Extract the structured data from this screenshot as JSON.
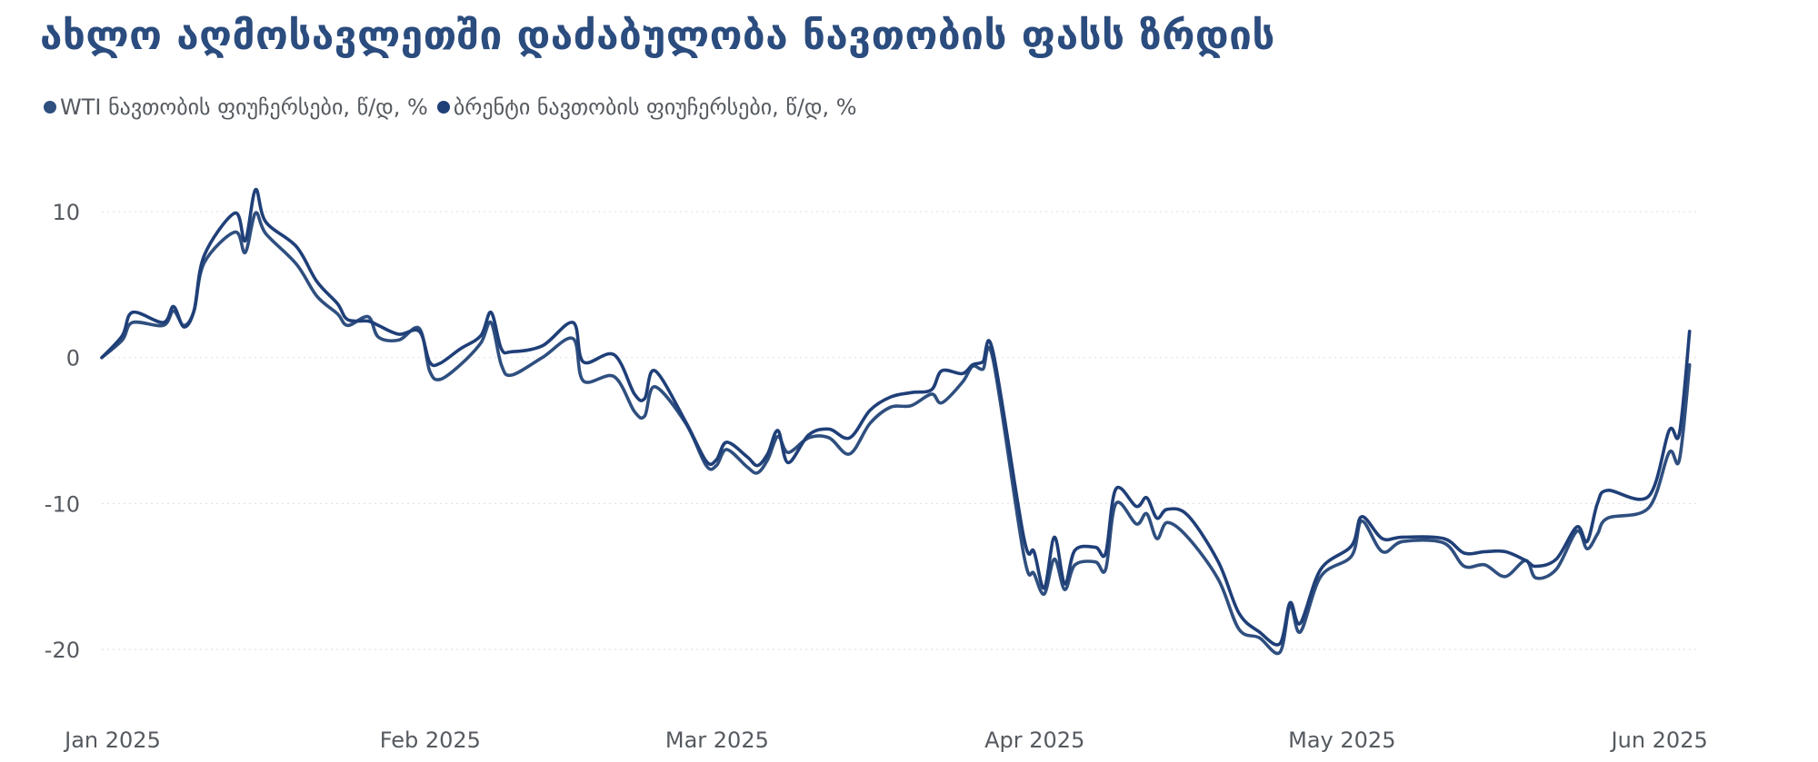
{
  "title": "ახლო აღმოსავლეთში დაძაბულობა ნავთობის ფასს ზრდის",
  "colors": {
    "title": "#2b4c7e",
    "wti": "#2f4f7f",
    "brent": "#1f3f78",
    "grid": "#e3e3e3",
    "text": "#555a60"
  },
  "chart_data": {
    "type": "line",
    "title": "ახლო აღმოსავლეთში დაძაბულობა ნავთობის ფასს ზრდის",
    "xlabel": "",
    "ylabel": "",
    "ylim": [
      -23,
      12
    ],
    "y_ticks": [
      10,
      0,
      -10,
      -20
    ],
    "x_ticks": [
      {
        "date": "2025-01-01",
        "label": "Jan 2025"
      },
      {
        "date": "2025-02-01",
        "label": "Feb 2025"
      },
      {
        "date": "2025-03-01",
        "label": "Mar 2025"
      },
      {
        "date": "2025-04-01",
        "label": "Apr 2025"
      },
      {
        "date": "2025-05-01",
        "label": "May 2025"
      },
      {
        "date": "2025-06-01",
        "label": "Jun 2025"
      }
    ],
    "grid": "horizontal dotted",
    "legend_position": "top-left",
    "series": [
      {
        "name": "WTI ნავთობის ფიუჩერსები, წ/დ, %",
        "points": [
          [
            "2025-01-01",
            0
          ],
          [
            "2025-01-03",
            1.2
          ],
          [
            "2025-01-04",
            2.4
          ],
          [
            "2025-01-07",
            2.2
          ],
          [
            "2025-01-08",
            3.2
          ],
          [
            "2025-01-09",
            2.2
          ],
          [
            "2025-01-10",
            3.2
          ],
          [
            "2025-01-11",
            6.5
          ],
          [
            "2025-01-14",
            8.6
          ],
          [
            "2025-01-15",
            7.2
          ],
          [
            "2025-01-16",
            9.9
          ],
          [
            "2025-01-17",
            8.5
          ],
          [
            "2025-01-20",
            6.4
          ],
          [
            "2025-01-22",
            4.2
          ],
          [
            "2025-01-24",
            3.0
          ],
          [
            "2025-01-25",
            2.2
          ],
          [
            "2025-01-27",
            2.8
          ],
          [
            "2025-01-28",
            1.4
          ],
          [
            "2025-01-30",
            1.2
          ],
          [
            "2025-02-01",
            2.0
          ],
          [
            "2025-02-02",
            -0.9
          ],
          [
            "2025-02-03",
            -1.5
          ],
          [
            "2025-02-05",
            -0.5
          ],
          [
            "2025-02-07",
            1.0
          ],
          [
            "2025-02-08",
            2.4
          ],
          [
            "2025-02-09",
            -0.5
          ],
          [
            "2025-02-10",
            -1.2
          ],
          [
            "2025-02-13",
            0
          ],
          [
            "2025-02-16",
            1.3
          ],
          [
            "2025-02-17",
            -1.6
          ],
          [
            "2025-02-20",
            -1.3
          ],
          [
            "2025-02-22",
            -3.7
          ],
          [
            "2025-02-23",
            -4.0
          ],
          [
            "2025-02-24",
            -2.0
          ],
          [
            "2025-02-27",
            -4.5
          ],
          [
            "2025-03-01",
            -7.4
          ],
          [
            "2025-03-02",
            -7.4
          ],
          [
            "2025-03-03",
            -6.3
          ],
          [
            "2025-03-05",
            -7.5
          ],
          [
            "2025-03-06",
            -7.9
          ],
          [
            "2025-03-07",
            -7.0
          ],
          [
            "2025-03-08",
            -5.4
          ],
          [
            "2025-03-09",
            -6.5
          ],
          [
            "2025-03-11",
            -5.5
          ],
          [
            "2025-03-13",
            -5.5
          ],
          [
            "2025-03-15",
            -6.6
          ],
          [
            "2025-03-17",
            -4.5
          ],
          [
            "2025-03-19",
            -3.4
          ],
          [
            "2025-03-21",
            -3.3
          ],
          [
            "2025-03-23",
            -2.5
          ],
          [
            "2025-03-24",
            -3.1
          ],
          [
            "2025-03-26",
            -1.7
          ],
          [
            "2025-03-27",
            -0.6
          ],
          [
            "2025-03-28",
            -0.8
          ],
          [
            "2025-03-29",
            -0.1
          ],
          [
            "2025-04-01",
            -13.5
          ],
          [
            "2025-04-02",
            -14.8
          ],
          [
            "2025-04-03",
            -16.2
          ],
          [
            "2025-04-04",
            -13.8
          ],
          [
            "2025-04-05",
            -15.9
          ],
          [
            "2025-04-06",
            -14.2
          ],
          [
            "2025-04-08",
            -14.0
          ],
          [
            "2025-04-09",
            -14.5
          ],
          [
            "2025-04-10",
            -10.0
          ],
          [
            "2025-04-12",
            -11.4
          ],
          [
            "2025-04-13",
            -10.7
          ],
          [
            "2025-04-14",
            -12.4
          ],
          [
            "2025-04-15",
            -11.3
          ],
          [
            "2025-04-17",
            -12.3
          ],
          [
            "2025-04-20",
            -15.2
          ],
          [
            "2025-04-22",
            -18.6
          ],
          [
            "2025-04-24",
            -19.2
          ],
          [
            "2025-04-26",
            -20.2
          ],
          [
            "2025-04-27",
            -17.0
          ],
          [
            "2025-04-28",
            -18.8
          ],
          [
            "2025-04-30",
            -15.0
          ],
          [
            "2025-05-03",
            -13.6
          ],
          [
            "2025-05-04",
            -11.2
          ],
          [
            "2025-05-06",
            -13.3
          ],
          [
            "2025-05-08",
            -12.6
          ],
          [
            "2025-05-12",
            -12.7
          ],
          [
            "2025-05-14",
            -14.3
          ],
          [
            "2025-05-16",
            -14.2
          ],
          [
            "2025-05-18",
            -15.0
          ],
          [
            "2025-05-20",
            -13.9
          ],
          [
            "2025-05-21",
            -15.1
          ],
          [
            "2025-05-23",
            -14.5
          ],
          [
            "2025-05-25",
            -11.9
          ],
          [
            "2025-05-26",
            -13.1
          ],
          [
            "2025-05-27",
            -12.1
          ],
          [
            "2025-05-28",
            -11.0
          ],
          [
            "2025-06-01",
            -10.3
          ],
          [
            "2025-06-03",
            -6.5
          ],
          [
            "2025-06-04",
            -7.0
          ],
          [
            "2025-06-05",
            -0.5
          ]
        ]
      },
      {
        "name": "ბრენტი ნავთობის ფიუჩერსები, წ/დ, %",
        "points": [
          [
            "2025-01-01",
            0
          ],
          [
            "2025-01-03",
            1.5
          ],
          [
            "2025-01-04",
            3.1
          ],
          [
            "2025-01-07",
            2.4
          ],
          [
            "2025-01-08",
            3.5
          ],
          [
            "2025-01-09",
            2.1
          ],
          [
            "2025-01-10",
            3.2
          ],
          [
            "2025-01-11",
            7.0
          ],
          [
            "2025-01-14",
            9.9
          ],
          [
            "2025-01-15",
            8.0
          ],
          [
            "2025-01-16",
            11.5
          ],
          [
            "2025-01-17",
            9.3
          ],
          [
            "2025-01-20",
            7.6
          ],
          [
            "2025-01-22",
            5.2
          ],
          [
            "2025-01-24",
            3.7
          ],
          [
            "2025-01-25",
            2.6
          ],
          [
            "2025-01-27",
            2.5
          ],
          [
            "2025-01-28",
            2.2
          ],
          [
            "2025-01-30",
            1.6
          ],
          [
            "2025-02-01",
            1.8
          ],
          [
            "2025-02-02",
            -0.3
          ],
          [
            "2025-02-03",
            -0.4
          ],
          [
            "2025-02-05",
            0.6
          ],
          [
            "2025-02-07",
            1.5
          ],
          [
            "2025-02-08",
            3.1
          ],
          [
            "2025-02-09",
            0.6
          ],
          [
            "2025-02-10",
            0.4
          ],
          [
            "2025-02-13",
            0.8
          ],
          [
            "2025-02-16",
            2.4
          ],
          [
            "2025-02-17",
            -0.3
          ],
          [
            "2025-02-20",
            0.2
          ],
          [
            "2025-02-22",
            -2.5
          ],
          [
            "2025-02-23",
            -2.8
          ],
          [
            "2025-02-24",
            -0.9
          ],
          [
            "2025-02-27",
            -4.4
          ],
          [
            "2025-03-01",
            -7.1
          ],
          [
            "2025-03-02",
            -7.0
          ],
          [
            "2025-03-03",
            -5.8
          ],
          [
            "2025-03-05",
            -6.8
          ],
          [
            "2025-03-06",
            -7.4
          ],
          [
            "2025-03-07",
            -6.6
          ],
          [
            "2025-03-08",
            -5.0
          ],
          [
            "2025-03-09",
            -7.2
          ],
          [
            "2025-03-11",
            -5.3
          ],
          [
            "2025-03-13",
            -4.9
          ],
          [
            "2025-03-15",
            -5.5
          ],
          [
            "2025-03-17",
            -3.6
          ],
          [
            "2025-03-19",
            -2.7
          ],
          [
            "2025-03-21",
            -2.4
          ],
          [
            "2025-03-23",
            -2.2
          ],
          [
            "2025-03-24",
            -0.9
          ],
          [
            "2025-03-26",
            -1.1
          ],
          [
            "2025-03-27",
            -0.5
          ],
          [
            "2025-03-28",
            -0.3
          ],
          [
            "2025-03-29",
            0.4
          ],
          [
            "2025-04-01",
            -12.3
          ],
          [
            "2025-04-02",
            -13.3
          ],
          [
            "2025-04-03",
            -15.8
          ],
          [
            "2025-04-04",
            -12.3
          ],
          [
            "2025-04-05",
            -15.5
          ],
          [
            "2025-04-06",
            -13.2
          ],
          [
            "2025-04-08",
            -13.0
          ],
          [
            "2025-04-09",
            -13.4
          ],
          [
            "2025-04-10",
            -9.0
          ],
          [
            "2025-04-12",
            -10.2
          ],
          [
            "2025-04-13",
            -9.6
          ],
          [
            "2025-04-14",
            -11.0
          ],
          [
            "2025-04-15",
            -10.4
          ],
          [
            "2025-04-17",
            -10.8
          ],
          [
            "2025-04-20",
            -14.0
          ],
          [
            "2025-04-22",
            -17.5
          ],
          [
            "2025-04-24",
            -18.8
          ],
          [
            "2025-04-26",
            -19.6
          ],
          [
            "2025-04-27",
            -16.8
          ],
          [
            "2025-04-28",
            -18.2
          ],
          [
            "2025-04-30",
            -14.5
          ],
          [
            "2025-05-03",
            -12.9
          ],
          [
            "2025-05-04",
            -10.9
          ],
          [
            "2025-05-06",
            -12.4
          ],
          [
            "2025-05-08",
            -12.3
          ],
          [
            "2025-05-12",
            -12.4
          ],
          [
            "2025-05-14",
            -13.4
          ],
          [
            "2025-05-16",
            -13.3
          ],
          [
            "2025-05-18",
            -13.3
          ],
          [
            "2025-05-20",
            -13.9
          ],
          [
            "2025-05-21",
            -14.3
          ],
          [
            "2025-05-23",
            -13.8
          ],
          [
            "2025-05-25",
            -11.6
          ],
          [
            "2025-05-26",
            -12.6
          ],
          [
            "2025-05-27",
            -10.0
          ],
          [
            "2025-05-28",
            -9.1
          ],
          [
            "2025-06-01",
            -9.5
          ],
          [
            "2025-06-03",
            -5.0
          ],
          [
            "2025-06-04",
            -5.2
          ],
          [
            "2025-06-05",
            1.8
          ]
        ]
      }
    ]
  }
}
